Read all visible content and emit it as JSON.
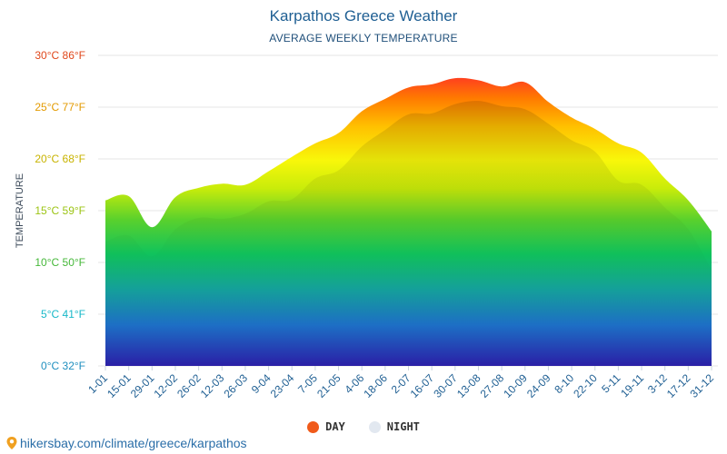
{
  "title": "Karpathos Greece Weather",
  "subtitle": "AVERAGE WEEKLY TEMPERATURE",
  "source": "hikersbay.com/climate/greece/karpathos",
  "colors": {
    "title": "#1f5f93",
    "day_legend": "#f05a1a",
    "night_legend": "#e2e8f0",
    "grid": "#e6e6e6",
    "tick": "#1f5f93"
  },
  "chart_data": {
    "type": "area",
    "ylabel": "TEMPERATURE",
    "ylim": [
      0,
      30
    ],
    "yticks": [
      {
        "value": 0,
        "label": "0°C 32°F",
        "color": "#1f8fbf"
      },
      {
        "value": 5,
        "label": "5°C 41°F",
        "color": "#17b8c8"
      },
      {
        "value": 10,
        "label": "10°C 50°F",
        "color": "#46b83a"
      },
      {
        "value": 15,
        "label": "15°C 59°F",
        "color": "#9cc414"
      },
      {
        "value": 20,
        "label": "20°C 68°F",
        "color": "#c8b300"
      },
      {
        "value": 25,
        "label": "25°C 77°F",
        "color": "#e39a00"
      },
      {
        "value": 30,
        "label": "30°C 86°F",
        "color": "#e0481c"
      }
    ],
    "categories": [
      "1-01",
      "15-01",
      "29-01",
      "12-02",
      "26-02",
      "12-03",
      "26-03",
      "9-04",
      "23-04",
      "7-05",
      "21-05",
      "4-06",
      "18-06",
      "2-07",
      "16-07",
      "30-07",
      "13-08",
      "27-08",
      "10-09",
      "24-09",
      "8-10",
      "22-10",
      "5-11",
      "19-11",
      "3-12",
      "17-12",
      "31-12"
    ],
    "legend": "bottom-center",
    "grid": true,
    "series": [
      {
        "name": "DAY",
        "values": [
          16.0,
          16.4,
          13.4,
          16.3,
          17.2,
          17.6,
          17.5,
          18.8,
          20.2,
          21.5,
          22.5,
          24.6,
          25.8,
          26.9,
          27.2,
          27.8,
          27.6,
          27.0,
          27.4,
          25.5,
          24.0,
          22.9,
          21.5,
          20.6,
          18.1,
          16.0,
          13.0
        ]
      },
      {
        "name": "NIGHT",
        "values": [
          12.0,
          12.6,
          10.6,
          13.2,
          14.3,
          14.2,
          14.7,
          15.9,
          16.1,
          18.1,
          18.9,
          21.2,
          22.8,
          24.3,
          24.4,
          25.3,
          25.6,
          25.1,
          24.8,
          23.4,
          21.8,
          20.7,
          17.9,
          17.5,
          15.3,
          13.2,
          9.3
        ]
      }
    ]
  }
}
